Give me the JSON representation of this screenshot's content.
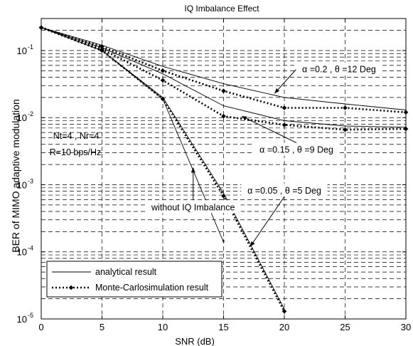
{
  "chart_data": {
    "type": "line",
    "title": "IQ Imbalance Effect",
    "xlabel": "SNR (dB)",
    "ylabel": "BER of MIMO adaptive modulation",
    "xlim": [
      0,
      30
    ],
    "ylim": [
      1e-05,
      0.3
    ],
    "yscale": "log",
    "grid": true,
    "x_ticks": [
      0,
      5,
      10,
      15,
      20,
      25,
      30
    ],
    "y_ticks": [
      {
        "value": 1e-05,
        "base": "10",
        "exp": "-5"
      },
      {
        "value": 0.0001,
        "base": "10",
        "exp": "-4"
      },
      {
        "value": 0.001,
        "base": "10",
        "exp": "-3"
      },
      {
        "value": 0.01,
        "base": "10",
        "exp": "-2"
      },
      {
        "value": 0.1,
        "base": "10",
        "exp": "-1"
      }
    ],
    "series": [
      {
        "style": "analytical",
        "group": "alpha=0.2",
        "x": [
          0,
          5,
          10,
          15,
          20,
          25,
          30
        ],
        "y": [
          0.22,
          0.12,
          0.058,
          0.032,
          0.02,
          0.016,
          0.013
        ]
      },
      {
        "style": "monte-carlo",
        "group": "alpha=0.2",
        "x": [
          0,
          5,
          10,
          15,
          20,
          25,
          30
        ],
        "y": [
          0.22,
          0.115,
          0.05,
          0.025,
          0.014,
          0.014,
          0.012
        ]
      },
      {
        "style": "analytical",
        "group": "alpha=0.15",
        "x": [
          0,
          5,
          10,
          15,
          20,
          25,
          30
        ],
        "y": [
          0.22,
          0.11,
          0.045,
          0.015,
          0.009,
          0.0075,
          0.0072
        ]
      },
      {
        "style": "monte-carlo",
        "group": "alpha=0.15",
        "x": [
          0,
          5,
          10,
          15,
          20,
          25,
          30
        ],
        "y": [
          0.22,
          0.105,
          0.036,
          0.0105,
          0.0078,
          0.0066,
          0.0068
        ]
      },
      {
        "style": "analytical",
        "group": "alpha=0.05",
        "x": [
          0,
          5,
          10,
          15,
          20
        ],
        "y": [
          0.22,
          0.1,
          0.02,
          0.00075,
          1.4e-05
        ]
      },
      {
        "style": "monte-carlo",
        "group": "alpha=0.05",
        "x": [
          0,
          5,
          10,
          15,
          20
        ],
        "y": [
          0.22,
          0.1,
          0.019,
          0.00068,
          1.3e-05
        ]
      },
      {
        "style": "analytical",
        "group": "without-iq",
        "x": [
          0,
          5,
          10,
          15
        ],
        "y": [
          0.22,
          0.1,
          0.019,
          0.00014
        ]
      }
    ],
    "annotations": [
      {
        "text": "α =0.2 , θ =12 Deg",
        "box_at": [
          24.5,
          0.052
        ],
        "arrow_to": [
          19.2,
          0.023
        ]
      },
      {
        "text": "α =0.15 , θ =9 Deg",
        "box_at": [
          21.0,
          0.0033
        ],
        "arrow_to": [
          16.5,
          0.0105
        ]
      },
      {
        "text": "α =0.05 , θ =5 Deg",
        "box_at": [
          20.0,
          0.00081
        ],
        "arrow_to": [
          17.2,
          0.00012
        ]
      },
      {
        "text": "without IQ Imbalance",
        "box_at": [
          12.5,
          0.00046
        ],
        "arrow_to": [
          12.5,
          0.0018
        ]
      }
    ],
    "note_lines": [
      "Nt=4 , Nr=4",
      "R=10 bps/Hz"
    ],
    "legend": {
      "position": "bottom-left",
      "entries": [
        {
          "label": "analytical result",
          "style": "analytical"
        },
        {
          "label": "Monte-Carlosimulation result",
          "style": "monte-carlo"
        }
      ]
    }
  }
}
